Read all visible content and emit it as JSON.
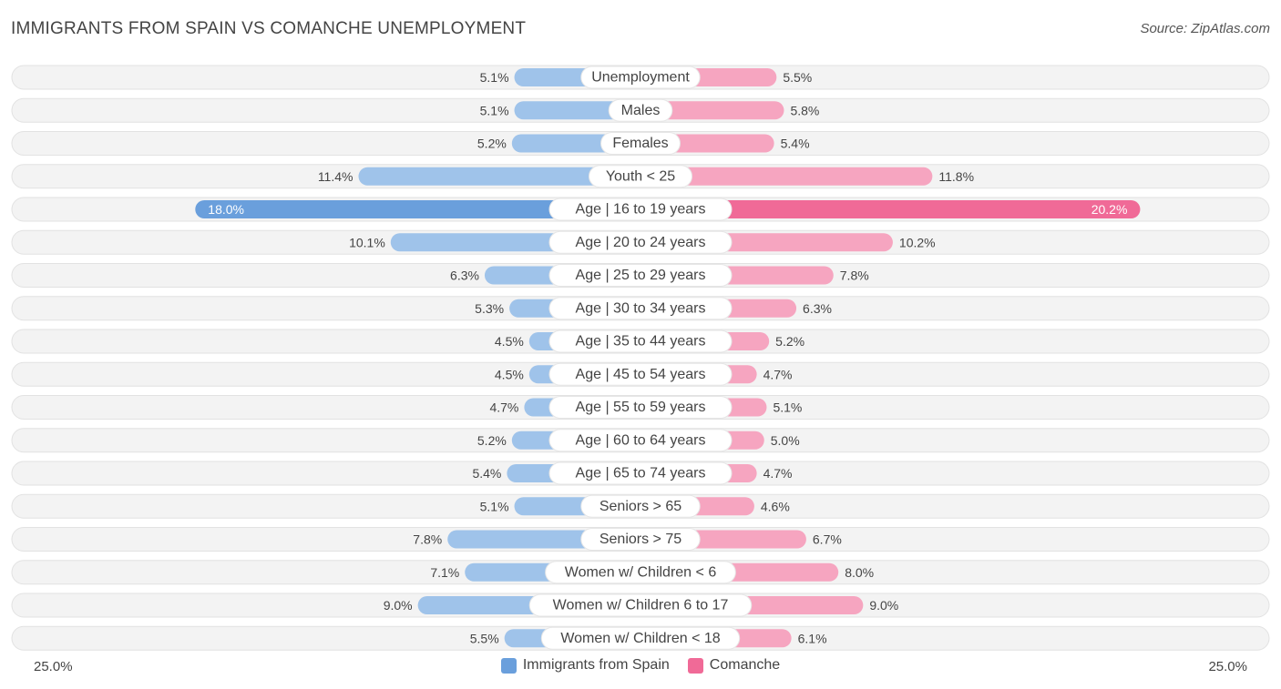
{
  "title": "IMMIGRANTS FROM SPAIN VS COMANCHE UNEMPLOYMENT",
  "source": "Source: ZipAtlas.com",
  "colors": {
    "left": "#9fc3ea",
    "left_strong": "#6a9fdc",
    "right": "#f6a5c0",
    "right_strong": "#f06a97"
  },
  "chart_data": {
    "type": "bar",
    "orientation": "horizontal-diverging",
    "axis_max": 25.0,
    "axis_left_label": "25.0%",
    "axis_right_label": "25.0%",
    "categories": [
      "Unemployment",
      "Males",
      "Females",
      "Youth < 25",
      "Age | 16 to 19 years",
      "Age | 20 to 24 years",
      "Age | 25 to 29 years",
      "Age | 30 to 34 years",
      "Age | 35 to 44 years",
      "Age | 45 to 54 years",
      "Age | 55 to 59 years",
      "Age | 60 to 64 years",
      "Age | 65 to 74 years",
      "Seniors > 65",
      "Seniors > 75",
      "Women w/ Children < 6",
      "Women w/ Children 6 to 17",
      "Women w/ Children < 18"
    ],
    "series": [
      {
        "name": "Immigrants from Spain",
        "values": [
          5.1,
          5.1,
          5.2,
          11.4,
          18.0,
          10.1,
          6.3,
          5.3,
          4.5,
          4.5,
          4.7,
          5.2,
          5.4,
          5.1,
          7.8,
          7.1,
          9.0,
          5.5
        ],
        "labels": [
          "5.1%",
          "5.1%",
          "5.2%",
          "11.4%",
          "18.0%",
          "10.1%",
          "6.3%",
          "5.3%",
          "4.5%",
          "4.5%",
          "4.7%",
          "5.2%",
          "5.4%",
          "5.1%",
          "7.8%",
          "7.1%",
          "9.0%",
          "5.5%"
        ]
      },
      {
        "name": "Comanche",
        "values": [
          5.5,
          5.8,
          5.4,
          11.8,
          20.2,
          10.2,
          7.8,
          6.3,
          5.2,
          4.7,
          5.1,
          5.0,
          4.7,
          4.6,
          6.7,
          8.0,
          9.0,
          6.1
        ],
        "labels": [
          "5.5%",
          "5.8%",
          "5.4%",
          "11.8%",
          "20.2%",
          "10.2%",
          "7.8%",
          "6.3%",
          "5.2%",
          "4.7%",
          "5.1%",
          "5.0%",
          "4.7%",
          "4.6%",
          "6.7%",
          "8.0%",
          "9.0%",
          "6.1%"
        ]
      }
    ],
    "legend": [
      "Immigrants from Spain",
      "Comanche"
    ],
    "legend_position": "bottom-center"
  }
}
